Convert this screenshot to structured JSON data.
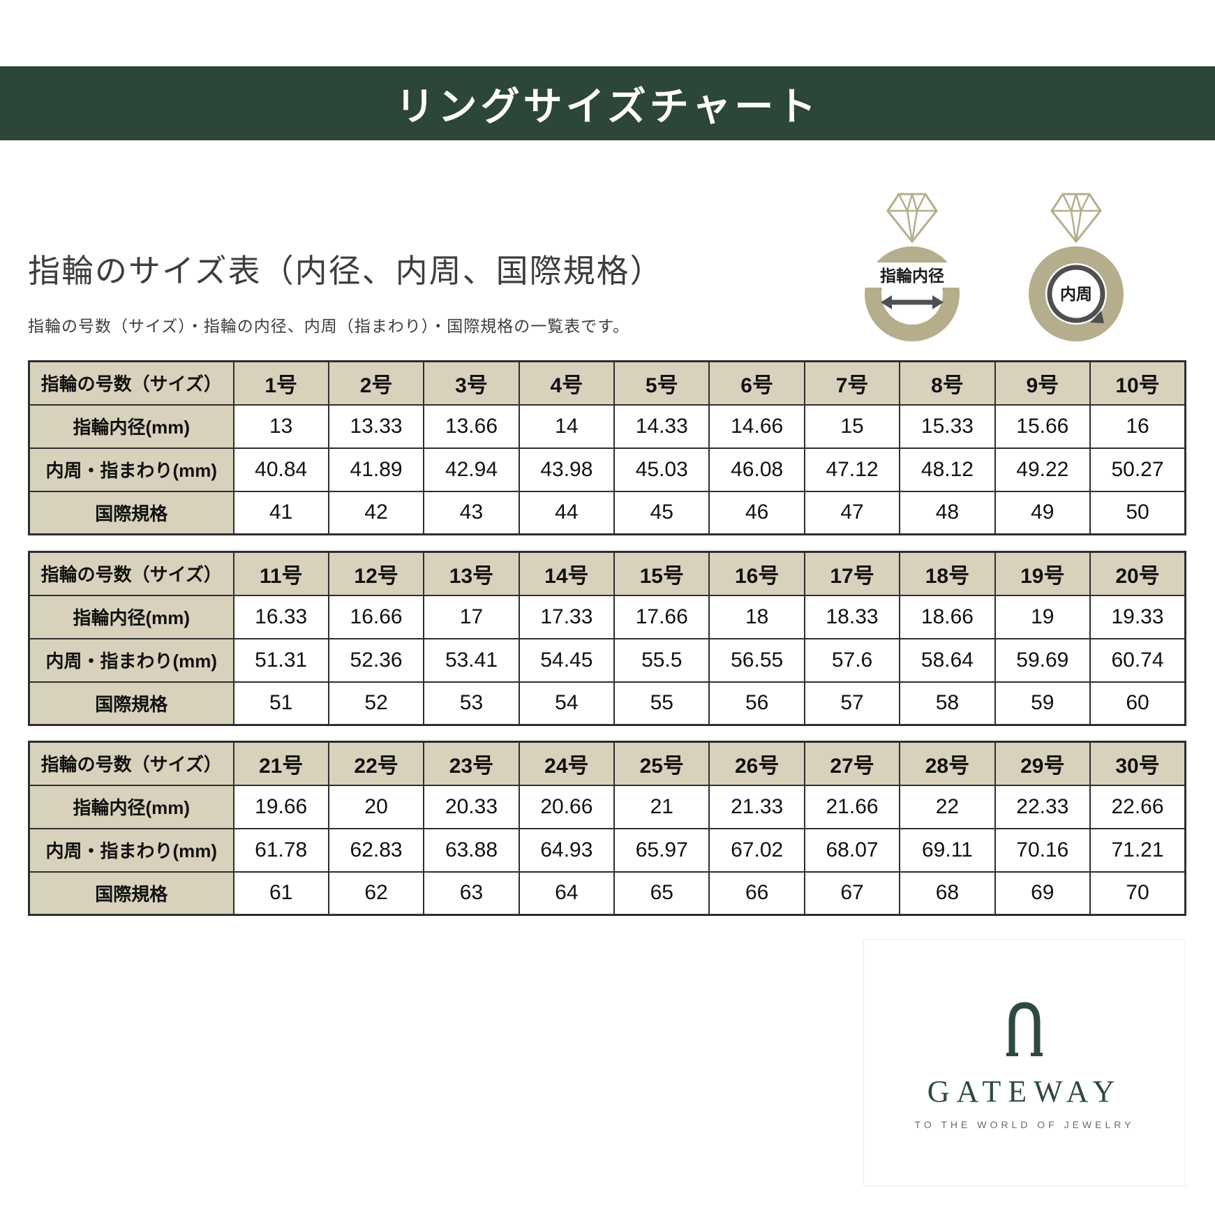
{
  "banner": {
    "title": "リングサイズチャート"
  },
  "intro": {
    "title": "指輪のサイズ表（内径、内周、国際規格）",
    "subtitle": "指輪の号数（サイズ）・指輪の内径、内周（指まわり）・国際規格の一覧表です。"
  },
  "diagram": {
    "inner_diameter_label": "指輪内径",
    "circumference_label": "内周"
  },
  "tables": [
    {
      "rows": [
        {
          "header": "指輪の号数（サイズ）",
          "values": [
            "1号",
            "2号",
            "3号",
            "4号",
            "5号",
            "6号",
            "7号",
            "8号",
            "9号",
            "10号"
          ]
        },
        {
          "header": "指輪内径(mm)",
          "values": [
            "13",
            "13.33",
            "13.66",
            "14",
            "14.33",
            "14.66",
            "15",
            "15.33",
            "15.66",
            "16"
          ]
        },
        {
          "header": "内周・指まわり(mm)",
          "values": [
            "40.84",
            "41.89",
            "42.94",
            "43.98",
            "45.03",
            "46.08",
            "47.12",
            "48.12",
            "49.22",
            "50.27"
          ]
        },
        {
          "header": "国際規格",
          "values": [
            "41",
            "42",
            "43",
            "44",
            "45",
            "46",
            "47",
            "48",
            "49",
            "50"
          ]
        }
      ]
    },
    {
      "rows": [
        {
          "header": "指輪の号数（サイズ）",
          "values": [
            "11号",
            "12号",
            "13号",
            "14号",
            "15号",
            "16号",
            "17号",
            "18号",
            "19号",
            "20号"
          ]
        },
        {
          "header": "指輪内径(mm)",
          "values": [
            "16.33",
            "16.66",
            "17",
            "17.33",
            "17.66",
            "18",
            "18.33",
            "18.66",
            "19",
            "19.33"
          ]
        },
        {
          "header": "内周・指まわり(mm)",
          "values": [
            "51.31",
            "52.36",
            "53.41",
            "54.45",
            "55.5",
            "56.55",
            "57.6",
            "58.64",
            "59.69",
            "60.74"
          ]
        },
        {
          "header": "国際規格",
          "values": [
            "51",
            "52",
            "53",
            "54",
            "55",
            "56",
            "57",
            "58",
            "59",
            "60"
          ]
        }
      ]
    },
    {
      "rows": [
        {
          "header": "指輪の号数（サイズ）",
          "values": [
            "21号",
            "22号",
            "23号",
            "24号",
            "25号",
            "26号",
            "27号",
            "28号",
            "29号",
            "30号"
          ]
        },
        {
          "header": "指輪内径(mm)",
          "values": [
            "19.66",
            "20",
            "20.33",
            "20.66",
            "21",
            "21.33",
            "21.66",
            "22",
            "22.33",
            "22.66"
          ]
        },
        {
          "header": "内周・指まわり(mm)",
          "values": [
            "61.78",
            "62.83",
            "63.88",
            "64.93",
            "65.97",
            "67.02",
            "68.07",
            "69.11",
            "70.16",
            "71.21"
          ]
        },
        {
          "header": "国際規格",
          "values": [
            "61",
            "62",
            "63",
            "64",
            "65",
            "66",
            "67",
            "68",
            "69",
            "70"
          ]
        }
      ]
    }
  ],
  "logo": {
    "brand": "GATEWAY",
    "tagline": "TO THE WORLD OF JEWELRY"
  },
  "colors": {
    "banner_green": "#2c4638",
    "header_beige": "#d8d2bc",
    "table_border": "#2e2e2e",
    "ring_tan": "#b5ad8b",
    "arrow_gray": "#4f4f4f",
    "logo_green": "#2e4a3c"
  }
}
